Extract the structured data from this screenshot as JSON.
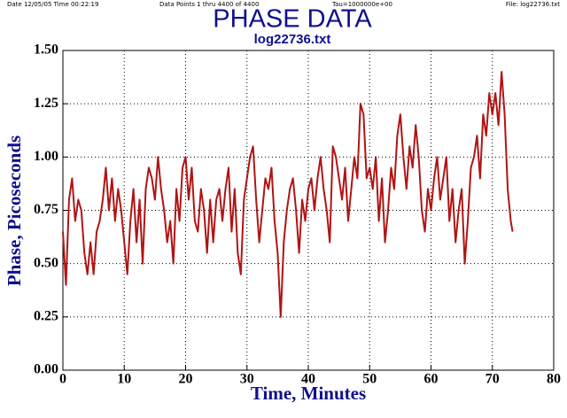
{
  "header": {
    "date": "Date 12/05/05 Time 00:22:19",
    "points": "Data Points 1 thru 4400 of 4400",
    "tau": "Tau=1000000e+00",
    "file": "File: log22736.txt"
  },
  "chart_data": {
    "type": "line",
    "title": "PHASE DATA",
    "subtitle": "log22736.txt",
    "x_label": "Time, Minutes",
    "y_label": "Phase, Picoseconds",
    "color": "#b01414",
    "grid": true,
    "xlim": [
      0,
      80
    ],
    "xticks": [
      0,
      10,
      20,
      30,
      40,
      50,
      60,
      70,
      80
    ],
    "ylim": [
      0,
      1.5
    ],
    "yticks": [
      {
        "value": 0,
        "label": "0.00"
      },
      {
        "value": 0.25,
        "label": "0.25"
      },
      {
        "value": 0.5,
        "label": "0.50"
      },
      {
        "value": 0.75,
        "label": "0.75"
      },
      {
        "value": 1,
        "label": "1.00"
      },
      {
        "value": 1.25,
        "label": "1.25"
      },
      {
        "value": 1.5,
        "label": "1.50"
      }
    ],
    "x": [
      0,
      0.5,
      1,
      1.5,
      2,
      2.5,
      3,
      3.5,
      4,
      4.5,
      5,
      5.5,
      6,
      6.5,
      7,
      7.5,
      8,
      8.5,
      9,
      9.5,
      10,
      10.5,
      11,
      11.5,
      12,
      12.5,
      13,
      13.5,
      14,
      14.5,
      15,
      15.5,
      16,
      16.5,
      17,
      17.5,
      18,
      18.5,
      19,
      19.5,
      20,
      20.5,
      21,
      21.5,
      22,
      22.5,
      23,
      23.5,
      24,
      24.5,
      25,
      25.5,
      26,
      26.5,
      27,
      27.5,
      28,
      28.5,
      29,
      29.5,
      30,
      30.5,
      31,
      31.5,
      32,
      32.5,
      33,
      33.5,
      34,
      34.5,
      35,
      35.5,
      36,
      36.5,
      37,
      37.5,
      38,
      38.5,
      39,
      39.5,
      40,
      40.5,
      41,
      41.5,
      42,
      42.5,
      43,
      43.5,
      44,
      44.5,
      45,
      45.5,
      46,
      46.5,
      47,
      47.5,
      48,
      48.5,
      49,
      49.5,
      50,
      50.5,
      51,
      51.5,
      52,
      52.5,
      53,
      53.5,
      54,
      54.5,
      55,
      55.5,
      56,
      56.5,
      57,
      57.5,
      58,
      58.5,
      59,
      59.5,
      60,
      60.5,
      61,
      61.5,
      62,
      62.5,
      63,
      63.5,
      64,
      64.5,
      65,
      65.5,
      66,
      66.5,
      67,
      67.5,
      68,
      68.5,
      69,
      69.5,
      70,
      70.5,
      71,
      71.5,
      72,
      72.5,
      73,
      73.3
    ],
    "values": [
      0.65,
      0.4,
      0.8,
      0.9,
      0.7,
      0.8,
      0.75,
      0.55,
      0.45,
      0.6,
      0.45,
      0.65,
      0.7,
      0.8,
      0.95,
      0.75,
      0.9,
      0.7,
      0.85,
      0.75,
      0.6,
      0.45,
      0.7,
      0.85,
      0.6,
      0.8,
      0.5,
      0.85,
      0.95,
      0.9,
      0.8,
      1.0,
      0.85,
      0.75,
      0.6,
      0.7,
      0.5,
      0.85,
      0.7,
      0.95,
      1.0,
      0.8,
      0.95,
      0.7,
      0.65,
      0.85,
      0.75,
      0.55,
      0.8,
      0.6,
      0.8,
      0.85,
      0.7,
      0.85,
      0.95,
      0.65,
      0.85,
      0.55,
      0.45,
      0.8,
      0.9,
      1.0,
      1.05,
      0.8,
      0.6,
      0.75,
      0.9,
      0.85,
      0.95,
      0.7,
      0.55,
      0.25,
      0.6,
      0.75,
      0.85,
      0.9,
      0.75,
      0.55,
      0.8,
      0.7,
      0.85,
      0.9,
      0.75,
      0.9,
      1.0,
      0.85,
      0.75,
      0.6,
      1.05,
      1.0,
      0.9,
      0.8,
      0.95,
      0.7,
      0.85,
      1.0,
      0.9,
      1.25,
      1.2,
      0.9,
      0.95,
      0.85,
      1.0,
      0.7,
      0.9,
      0.6,
      0.75,
      0.95,
      0.85,
      1.1,
      1.2,
      1.0,
      0.85,
      1.05,
      0.95,
      1.15,
      1.0,
      0.75,
      0.65,
      0.85,
      0.75,
      0.9,
      1.0,
      0.8,
      0.9,
      1.0,
      0.7,
      0.85,
      0.6,
      0.75,
      0.85,
      0.5,
      0.7,
      0.95,
      1.0,
      1.1,
      0.9,
      1.2,
      1.1,
      1.3,
      1.2,
      1.3,
      1.15,
      1.4,
      1.2,
      0.85,
      0.7,
      0.65
    ]
  }
}
